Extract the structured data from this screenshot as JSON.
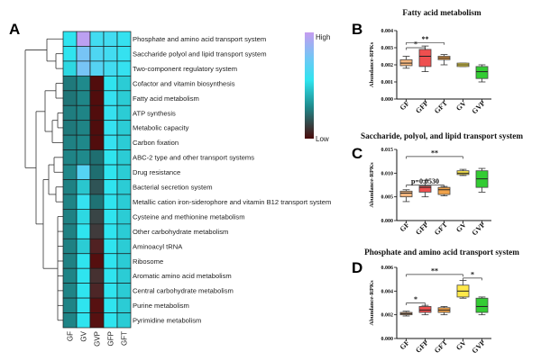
{
  "panels": {
    "a": "A",
    "b": "B",
    "c": "C",
    "d": "D"
  },
  "colors": {
    "heatmap_low": "#4a0a0a",
    "heatmap_mid": "#1f8a8c",
    "heatmap_cyan": "#2fe4ef",
    "heatmap_high": "#c59cf0",
    "GF": "#f6b77f",
    "GFP": "#ee4f4f",
    "GFT": "#f0a24a",
    "GV": "#ffe94a",
    "GVP": "#33cc33"
  },
  "chart_data": [
    {
      "type": "heatmap",
      "columns": [
        "GF",
        "GV",
        "GVP",
        "GFP",
        "GFT"
      ],
      "rows": [
        "Phosphate and amino acid transport system",
        "Saccharide polyol and lipid transport system",
        "Two-component regulatory system",
        "Cofactor and vitamin biosynthesis",
        "Fatty acid metabolism",
        "ATP synthesis",
        "Metabolic capacity",
        "Carbon fixation",
        "ABC-2 type and other transport systems",
        "Drug resistance",
        "Bacterial secretion system",
        "Metallic cation iron-siderophore and vitamin B12 transport system",
        "Cysteine and methionine metabolism",
        "Other carbohydrate metabolism",
        "Aminoacyl tRNA",
        "Ribosome",
        "Aromatic amino acid metabolism",
        "Central carbohydrate metabolism",
        "Purine metabolism",
        "Pyrimidine metabolism"
      ],
      "values": [
        [
          0.6,
          0.98,
          0.66,
          0.66,
          0.62
        ],
        [
          0.6,
          0.82,
          0.7,
          0.66,
          0.62
        ],
        [
          0.58,
          0.82,
          0.72,
          0.66,
          0.62
        ],
        [
          0.36,
          0.45,
          0.05,
          0.6,
          0.56
        ],
        [
          0.34,
          0.43,
          0.05,
          0.62,
          0.56
        ],
        [
          0.38,
          0.42,
          0.05,
          0.62,
          0.56
        ],
        [
          0.36,
          0.42,
          0.04,
          0.62,
          0.56
        ],
        [
          0.4,
          0.44,
          0.05,
          0.62,
          0.56
        ],
        [
          0.42,
          0.45,
          0.3,
          0.6,
          0.56
        ],
        [
          0.44,
          0.72,
          0.3,
          0.6,
          0.56
        ],
        [
          0.4,
          0.55,
          0.25,
          0.6,
          0.56
        ],
        [
          0.42,
          0.62,
          0.32,
          0.6,
          0.56
        ],
        [
          0.4,
          0.58,
          0.22,
          0.6,
          0.56
        ],
        [
          0.4,
          0.6,
          0.2,
          0.6,
          0.56
        ],
        [
          0.4,
          0.56,
          0.15,
          0.6,
          0.56
        ],
        [
          0.4,
          0.6,
          0.08,
          0.6,
          0.56
        ],
        [
          0.42,
          0.6,
          0.18,
          0.6,
          0.56
        ],
        [
          0.42,
          0.6,
          0.16,
          0.6,
          0.56
        ],
        [
          0.42,
          0.6,
          0.1,
          0.6,
          0.56
        ],
        [
          0.42,
          0.6,
          0.1,
          0.6,
          0.56
        ]
      ],
      "legend": {
        "high": "High",
        "low": "Low"
      }
    },
    {
      "type": "box",
      "title": "Fatty acid metabolism",
      "ylabel": "Abundance-RPKs",
      "ylim": [
        0,
        0.004
      ],
      "yticks": [
        "0.000",
        "0.001",
        "0.002",
        "0.003",
        "0.004"
      ],
      "ytick_values": [
        0,
        0.001,
        0.002,
        0.003,
        0.004
      ],
      "categories": [
        "GF",
        "GFP",
        "GFT",
        "GV",
        "GVP"
      ],
      "boxes": [
        {
          "min": 0.0018,
          "q1": 0.00195,
          "median": 0.0021,
          "q3": 0.0023,
          "max": 0.0025
        },
        {
          "min": 0.0016,
          "q1": 0.0019,
          "median": 0.0025,
          "q3": 0.0029,
          "max": 0.0031
        },
        {
          "min": 0.002,
          "q1": 0.0023,
          "median": 0.0024,
          "q3": 0.0025,
          "max": 0.0026
        },
        {
          "min": 0.0019,
          "q1": 0.0019,
          "median": 0.002,
          "q3": 0.0021,
          "max": 0.0021
        },
        {
          "min": 0.001,
          "q1": 0.0012,
          "median": 0.0016,
          "q3": 0.0019,
          "max": 0.002
        }
      ],
      "annotations": [
        {
          "from": 0,
          "to": 1,
          "level": 0.003,
          "label": "*"
        },
        {
          "from": 0,
          "to": 2,
          "level": 0.0033,
          "label": "**"
        }
      ]
    },
    {
      "type": "box",
      "title": "Saccharide, polyol, and lipid transport system",
      "ylabel": "Abundance-RPKs",
      "ylim": [
        0,
        0.015
      ],
      "yticks": [
        "0.000",
        "0.005",
        "0.010",
        "0.015"
      ],
      "ytick_values": [
        0,
        0.005,
        0.01,
        0.015
      ],
      "categories": [
        "GF",
        "GFP",
        "GFT",
        "GV",
        "GVP"
      ],
      "boxes": [
        {
          "min": 0.004,
          "q1": 0.005,
          "median": 0.0058,
          "q3": 0.0062,
          "max": 0.0065
        },
        {
          "min": 0.005,
          "q1": 0.006,
          "median": 0.007,
          "q3": 0.0073,
          "max": 0.0085
        },
        {
          "min": 0.0052,
          "q1": 0.0055,
          "median": 0.0065,
          "q3": 0.007,
          "max": 0.0072
        },
        {
          "min": 0.0095,
          "q1": 0.0097,
          "median": 0.01,
          "q3": 0.0105,
          "max": 0.0108
        },
        {
          "min": 0.006,
          "q1": 0.007,
          "median": 0.0088,
          "q3": 0.0105,
          "max": 0.011
        }
      ],
      "annotations": [
        {
          "from": 0,
          "to": 2,
          "level": 0.0075,
          "label": "p=0.0530"
        },
        {
          "from": 0,
          "to": 3,
          "level": 0.0135,
          "label": "**"
        }
      ]
    },
    {
      "type": "box",
      "title": "Phosphate and amino acid transport system",
      "ylabel": "Abundance-RPKs",
      "ylim": [
        0,
        0.006
      ],
      "yticks": [
        "0.000",
        "0.002",
        "0.004",
        "0.006"
      ],
      "ytick_values": [
        0,
        0.002,
        0.004,
        0.006
      ],
      "categories": [
        "GF",
        "GFP",
        "GFT",
        "GV",
        "GVP"
      ],
      "boxes": [
        {
          "min": 0.0019,
          "q1": 0.002,
          "median": 0.0021,
          "q3": 0.0022,
          "max": 0.0023
        },
        {
          "min": 0.002,
          "q1": 0.0022,
          "median": 0.0024,
          "q3": 0.0027,
          "max": 0.0028
        },
        {
          "min": 0.002,
          "q1": 0.0022,
          "median": 0.0024,
          "q3": 0.0026,
          "max": 0.0027
        },
        {
          "min": 0.0034,
          "q1": 0.0035,
          "median": 0.004,
          "q3": 0.0045,
          "max": 0.0049
        },
        {
          "min": 0.002,
          "q1": 0.0022,
          "median": 0.0027,
          "q3": 0.0034,
          "max": 0.0035
        }
      ],
      "annotations": [
        {
          "from": 0,
          "to": 1,
          "level": 0.003,
          "label": "*"
        },
        {
          "from": 0,
          "to": 3,
          "level": 0.0054,
          "label": "**"
        },
        {
          "from": 3,
          "to": 4,
          "level": 0.0051,
          "label": "*"
        }
      ]
    }
  ]
}
